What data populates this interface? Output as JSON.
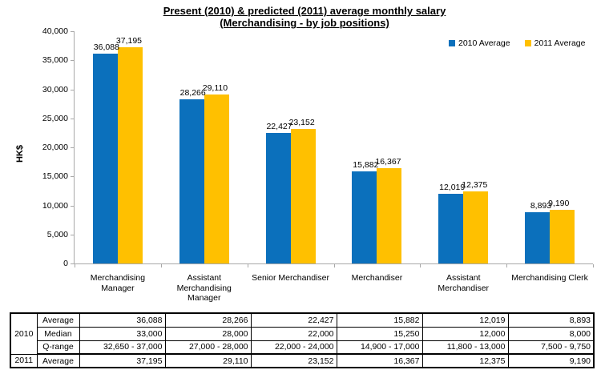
{
  "title": {
    "line1": "Present (2010) & predicted (2011) average monthly salary",
    "line2": "(Merchandising - by job positions)"
  },
  "ylabel": "HK$",
  "colors": {
    "series_2010": "#0b70bc",
    "series_2011": "#ffc000",
    "axis": "#a8a8a8",
    "text": "#000000"
  },
  "legend": [
    {
      "label": "2010 Average",
      "color": "#0b70bc"
    },
    {
      "label": "2011 Average",
      "color": "#ffc000"
    }
  ],
  "chart_data": {
    "type": "bar",
    "title": "Present (2010) & predicted (2011) average monthly salary (Merchandising - by job positions)",
    "xlabel": "",
    "ylabel": "HK$",
    "ylim": [
      0,
      40000
    ],
    "ytick_interval": 5000,
    "grid": false,
    "legend_position": "top-right",
    "categories": [
      "Merchandising Manager",
      "Assistant Merchandising Manager",
      "Senior Merchandiser",
      "Merchandiser",
      "Assistant Merchandiser",
      "Merchandising Clerk"
    ],
    "series": [
      {
        "name": "2010 Average",
        "values": [
          36088,
          28266,
          22427,
          15882,
          12019,
          8893
        ]
      },
      {
        "name": "2011 Average",
        "values": [
          37195,
          29110,
          23152,
          16367,
          12375,
          9190
        ]
      }
    ]
  },
  "table": {
    "row_groups": [
      {
        "year": "2010",
        "rows": [
          {
            "stat": "Average",
            "values": [
              "36,088",
              "28,266",
              "22,427",
              "15,882",
              "12,019",
              "8,893"
            ]
          },
          {
            "stat": "Median",
            "values": [
              "33,000",
              "28,000",
              "22,000",
              "15,250",
              "12,000",
              "8,000"
            ]
          },
          {
            "stat": "Q-range",
            "values": [
              "32,650 - 37,000",
              "27,000 - 28,000",
              "22,000 - 24,000",
              "14,900 - 17,000",
              "11,800 - 13,000",
              "7,500 - 9,750"
            ]
          }
        ]
      },
      {
        "year": "2011",
        "rows": [
          {
            "stat": "Average",
            "values": [
              "37,195",
              "29,110",
              "23,152",
              "16,367",
              "12,375",
              "9,190"
            ]
          }
        ]
      }
    ]
  }
}
